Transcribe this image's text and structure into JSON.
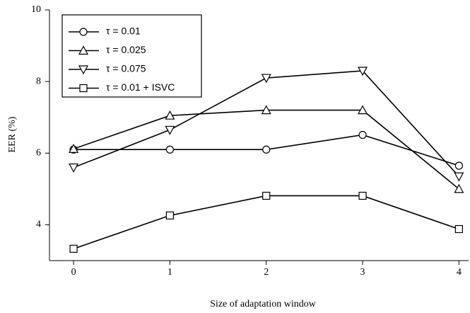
{
  "chart_data": {
    "type": "line",
    "x_label": "Size of adaptation window",
    "y_label": "EER (%)",
    "x": [
      0,
      1,
      2,
      3,
      4
    ],
    "xlim": [
      -0.25,
      4.1
    ],
    "xticks": [
      0,
      1,
      2,
      3,
      4
    ],
    "ylim": [
      3,
      10
    ],
    "yticks": [
      4,
      6,
      8,
      10
    ],
    "legend": "upper left",
    "series": [
      {
        "name": "τ = 0.01",
        "color": "#000000",
        "marker": "circle",
        "values": [
          6.1,
          6.1,
          6.1,
          6.51,
          5.65
        ]
      },
      {
        "name": "τ = 0.025",
        "color": "#000000",
        "marker": "triangle-up",
        "values": [
          6.12,
          7.05,
          7.2,
          7.2,
          5.0
        ]
      },
      {
        "name": "τ = 0.075",
        "color": "#000000",
        "marker": "triangle-down",
        "values": [
          5.6,
          6.65,
          8.1,
          8.3,
          5.35
        ]
      },
      {
        "name": "τ = 0.01 + ISVC",
        "color": "#000000",
        "marker": "square",
        "values": [
          3.33,
          4.26,
          4.81,
          4.81,
          3.88
        ]
      }
    ]
  }
}
